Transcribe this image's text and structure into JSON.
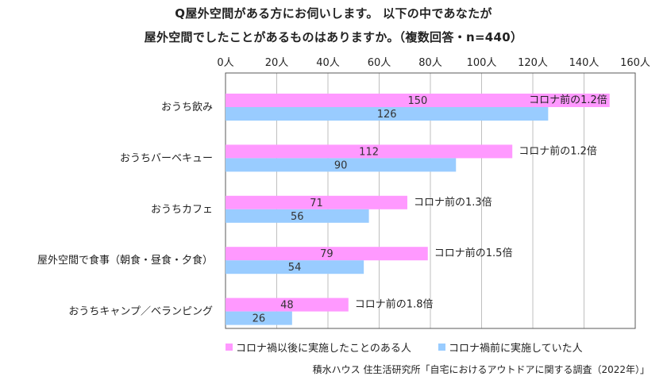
{
  "title_line1": "Q屋外空間がある方にお伺いします。 以下の中であなたが",
  "title_line2": "屋外空間でしたことがあるものはありますか。（複数回答・n=440）",
  "source": "積水ハウス 住生活研究所「自宅におけるアウトドアに関する調査（2022年）」",
  "chart_data": {
    "type": "bar",
    "orientation": "horizontal",
    "unit": "人",
    "xlim": [
      0,
      160
    ],
    "x_ticks": [
      "0人",
      "20人",
      "40人",
      "60人",
      "80人",
      "100人",
      "120人",
      "140人",
      "160人"
    ],
    "x_tick_values": [
      0,
      20,
      40,
      60,
      80,
      100,
      120,
      140,
      160
    ],
    "grid": true,
    "axis_position": "top",
    "legend_position": "bottom",
    "categories": [
      "おうち飲み",
      "おうちバーベキュー",
      "おうちカフェ",
      "屋外空間で食事（朝食・昼食・夕食）",
      "おうちキャンプ／ベランピング"
    ],
    "series": [
      {
        "name": "コロナ禍以後に実施したことのある人",
        "color": "#ff99ff",
        "values": [
          150,
          112,
          71,
          79,
          48
        ]
      },
      {
        "name": "コロナ禍前に実施していた人",
        "color": "#99ccff",
        "values": [
          126,
          90,
          56,
          54,
          26
        ]
      }
    ],
    "annotations": [
      "コロナ前の1.2倍",
      "コロナ前の1.2倍",
      "コロナ前の1.3倍",
      "コロナ前の1.5倍",
      "コロナ前の1.8倍"
    ]
  }
}
